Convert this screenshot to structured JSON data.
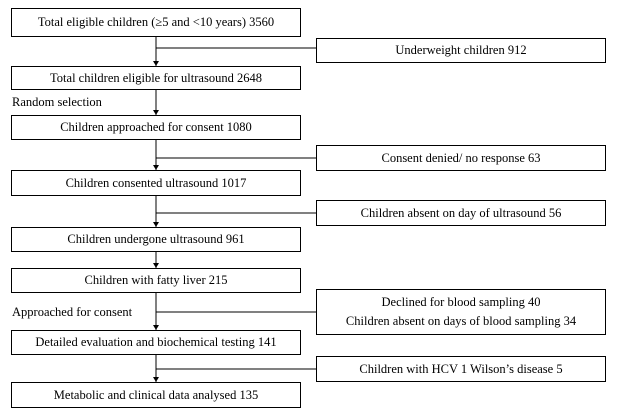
{
  "flowchart": {
    "main": [
      "Total eligible children (≥5 and <10 years) 3560",
      "Total children eligible for ultrasound 2648",
      "Children approached for consent 1080",
      "Children consented ultrasound 1017",
      "Children undergone ultrasound 961",
      "Children with fatty liver 215",
      "Detailed evaluation and biochemical testing 141",
      "Metabolic and clinical data analysed 135"
    ],
    "side": [
      "Underweight children 912",
      "Consent denied/ no response 63",
      "Children absent on day of ultrasound 56",
      "Declined for blood sampling 40",
      "Children absent on days of blood sampling 34",
      "Children with HCV 1 Wilson’s disease 5"
    ],
    "labels": {
      "random": "Random selection",
      "approached": "Approached for consent"
    }
  }
}
